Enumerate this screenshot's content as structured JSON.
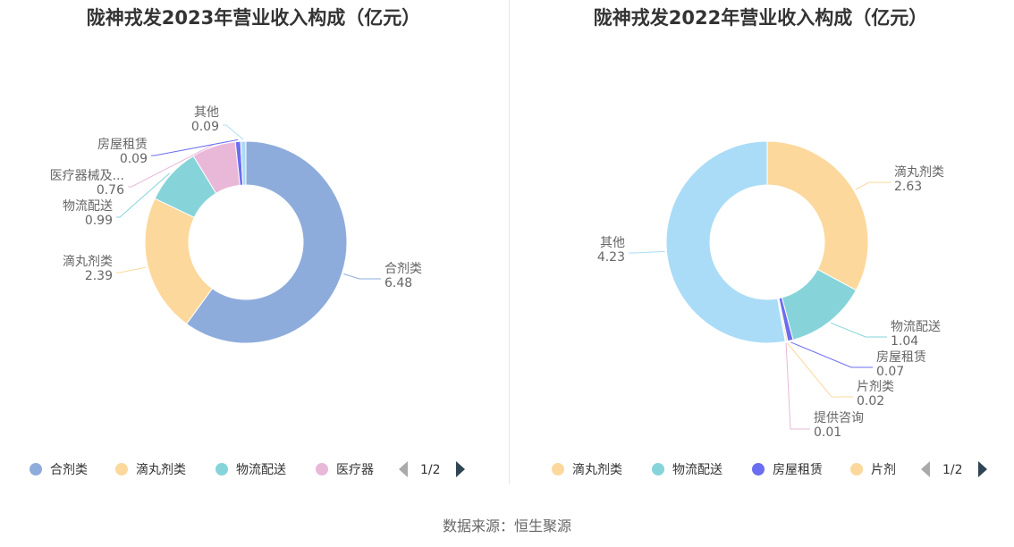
{
  "source_label": "数据来源：恒生聚源",
  "chart_data": [
    {
      "type": "pie",
      "donut": true,
      "title": "陇神戎发2023年营业收入构成（亿元）",
      "slices": [
        {
          "name": "合剂类",
          "value": 6.48,
          "color": "#8eacdb",
          "label_text": "合剂类",
          "value_text": "6.48"
        },
        {
          "name": "滴丸剂类",
          "value": 2.39,
          "color": "#fcd89c",
          "label_text": "滴丸剂类",
          "value_text": "2.39"
        },
        {
          "name": "物流配送",
          "value": 0.99,
          "color": "#86d4da",
          "label_text": "物流配送",
          "value_text": "0.99"
        },
        {
          "name": "医疗器械及耗材",
          "value": 0.76,
          "color": "#e9b8d9",
          "label_text": "医疗器械及...",
          "value_text": "0.76"
        },
        {
          "name": "房屋租赁",
          "value": 0.09,
          "color": "#6b6ef0",
          "label_text": "房屋租赁",
          "value_text": "0.09"
        },
        {
          "name": "其他",
          "value": 0.09,
          "color": "#aadcf7",
          "label_text": "其他",
          "value_text": "0.09"
        }
      ],
      "legend": {
        "items": [
          "合剂类",
          "滴丸剂类",
          "物流配送",
          "医疗器"
        ],
        "colors": [
          "#8eacdb",
          "#fcd89c",
          "#86d4da",
          "#e9b8d9"
        ],
        "page": "1/2",
        "placement": "bottom"
      }
    },
    {
      "type": "pie",
      "donut": true,
      "title": "陇神戎发2022年营业收入构成（亿元）",
      "slices": [
        {
          "name": "滴丸剂类",
          "value": 2.63,
          "color": "#fcd89c",
          "label_text": "滴丸剂类",
          "value_text": "2.63"
        },
        {
          "name": "物流配送",
          "value": 1.04,
          "color": "#86d4da",
          "label_text": "物流配送",
          "value_text": "1.04"
        },
        {
          "name": "房屋租赁",
          "value": 0.07,
          "color": "#6b6ef0",
          "label_text": "房屋租赁",
          "value_text": "0.07"
        },
        {
          "name": "片剂类",
          "value": 0.02,
          "color": "#fcd89c",
          "label_text": "片剂类",
          "value_text": "0.02"
        },
        {
          "name": "提供咨询",
          "value": 0.01,
          "color": "#e9b8d9",
          "label_text": "提供咨询",
          "value_text": "0.01"
        },
        {
          "name": "其他",
          "value": 4.23,
          "color": "#aadcf7",
          "label_text": "其他",
          "value_text": "4.23"
        }
      ],
      "legend": {
        "items": [
          "滴丸剂类",
          "物流配送",
          "房屋租赁",
          "片剂"
        ],
        "colors": [
          "#fcd89c",
          "#86d4da",
          "#6b6ef0",
          "#fcd89c"
        ],
        "page": "1/2",
        "placement": "bottom"
      }
    }
  ]
}
